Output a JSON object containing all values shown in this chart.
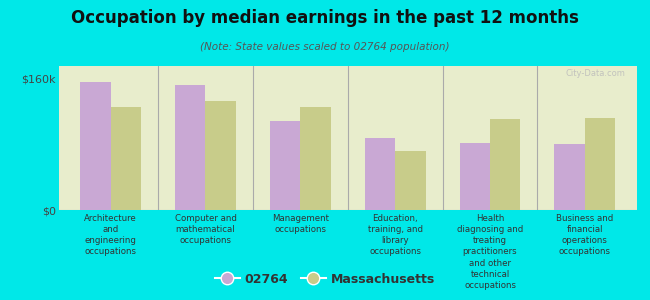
{
  "title": "Occupation by median earnings in the past 12 months",
  "subtitle": "(Note: State values scaled to 02764 population)",
  "background_color": "#00e8e8",
  "plot_bg_color": "#e8edcc",
  "bar_color_02764": "#c9a8d4",
  "bar_color_ma": "#c8cc8a",
  "categories": [
    "Architecture\nand\nengineering\noccupations",
    "Computer and\nmathematical\noccupations",
    "Management\noccupations",
    "Education,\ntraining, and\nlibrary\noccupations",
    "Health\ndiagnosing and\ntreating\npractitioners\nand other\ntechnical\noccupations",
    "Business and\nfinancial\noperations\noccupations"
  ],
  "values_02764": [
    155000,
    152000,
    108000,
    88000,
    82000,
    80000
  ],
  "values_ma": [
    125000,
    132000,
    125000,
    72000,
    110000,
    112000
  ],
  "ylim": [
    0,
    175000
  ],
  "yticks": [
    0,
    160000
  ],
  "ytick_labels": [
    "$0",
    "$160k"
  ],
  "legend_labels": [
    "02764",
    "Massachusetts"
  ],
  "watermark": "City-Data.com"
}
